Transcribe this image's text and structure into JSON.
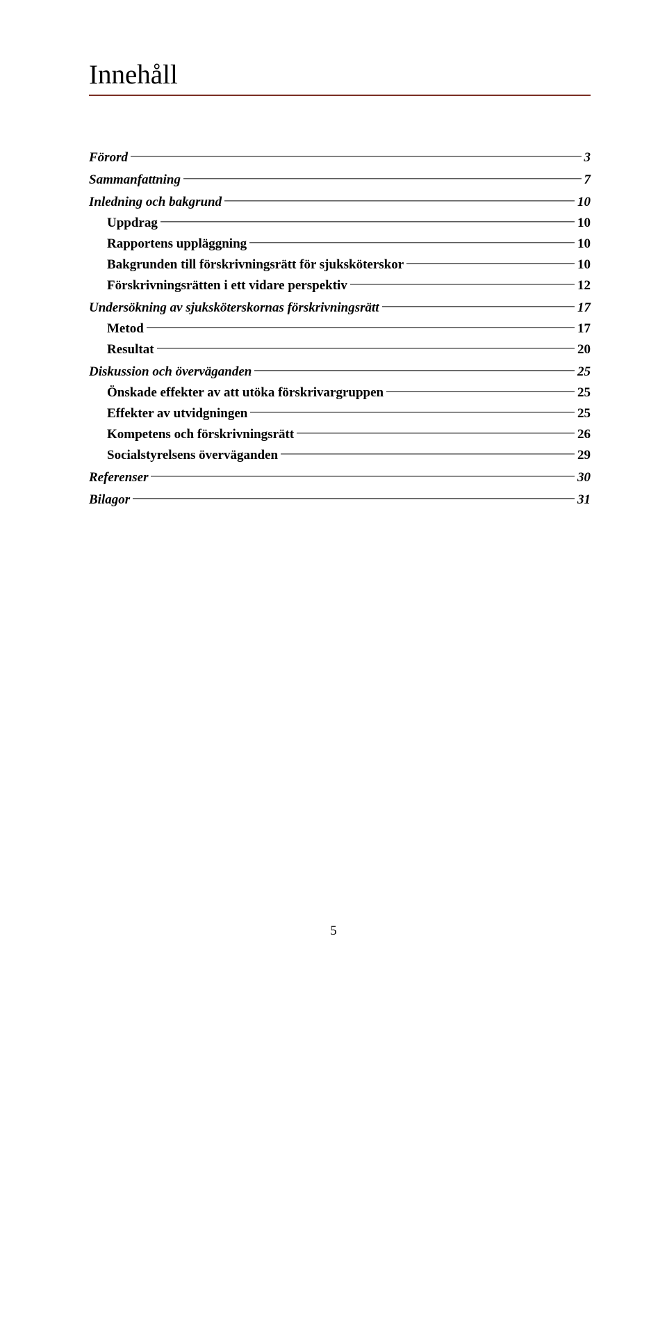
{
  "title": "Innehåll",
  "title_rule_color": "#7a2e22",
  "toc": [
    {
      "label": "Förord",
      "page": "3",
      "level": 1
    },
    {
      "label": "Sammanfattning",
      "page": "7",
      "level": 1
    },
    {
      "label": "Inledning och bakgrund",
      "page": "10",
      "level": 1
    },
    {
      "label": "Uppdrag",
      "page": "10",
      "level": 2
    },
    {
      "label": "Rapportens uppläggning",
      "page": "10",
      "level": 2
    },
    {
      "label": "Bakgrunden till förskrivningsrätt för sjuksköterskor",
      "page": "10",
      "level": 2
    },
    {
      "label": "Förskrivningsrätten i ett vidare perspektiv",
      "page": "12",
      "level": 2
    },
    {
      "label": "Undersökning av sjuksköterskornas förskrivningsrätt",
      "page": "17",
      "level": 1
    },
    {
      "label": "Metod",
      "page": "17",
      "level": 2
    },
    {
      "label": "Resultat",
      "page": "20",
      "level": 2
    },
    {
      "label": "Diskussion och överväganden",
      "page": "25",
      "level": 1
    },
    {
      "label": "Önskade effekter av att utöka förskrivargruppen",
      "page": "25",
      "level": 2
    },
    {
      "label": "Effekter av utvidgningen",
      "page": "25",
      "level": 2
    },
    {
      "label": "Kompetens och förskrivningsrätt",
      "page": "26",
      "level": 2
    },
    {
      "label": "Socialstyrelsens överväganden",
      "page": "29",
      "level": 2
    },
    {
      "label": "Referenser",
      "page": "30",
      "level": 1
    },
    {
      "label": "Bilagor",
      "page": "31",
      "level": 1
    }
  ],
  "page_number": "5"
}
